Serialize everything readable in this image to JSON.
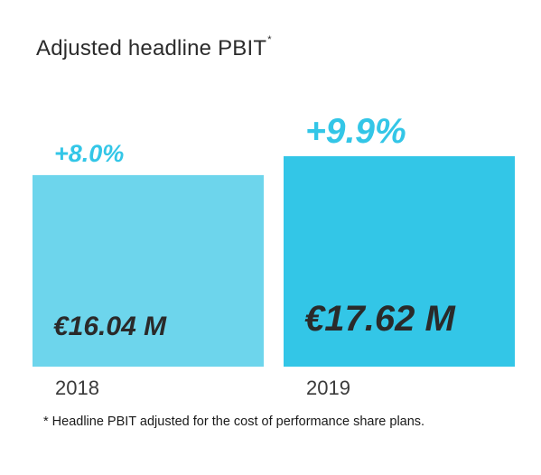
{
  "chart": {
    "title": "Adjusted headline PBIT",
    "title_marker": "*",
    "footnote": "* Headline PBIT adjusted for the cost of performance share plans."
  },
  "chart_data": {
    "type": "bar",
    "title": "Adjusted headline PBIT",
    "categories": [
      "2018",
      "2019"
    ],
    "values": [
      16.04,
      17.62
    ],
    "value_labels": [
      "€16.04 M",
      "€17.62 M"
    ],
    "growth_labels": [
      "+8.0%",
      "+9.9%"
    ],
    "unit": "€ M",
    "xlabel": "",
    "ylabel": "",
    "ylim": [
      0,
      17.62
    ],
    "grid": false,
    "legend": "none",
    "colors": {
      "bars": [
        "#6dd5ec",
        "#33c6e7"
      ],
      "growth_text": "#33c6e7",
      "value_text": "#2a2a2a",
      "category_text": "#3a3a3a"
    }
  }
}
